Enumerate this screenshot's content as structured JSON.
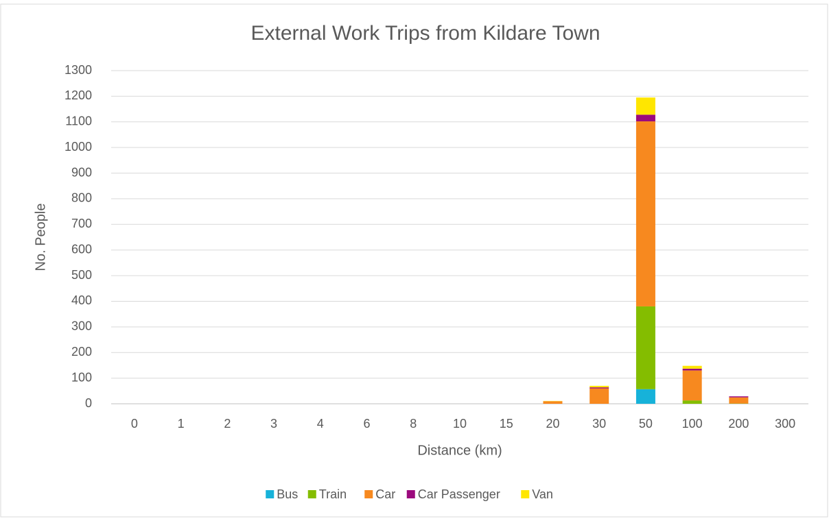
{
  "chart_data": {
    "type": "stacked-bar",
    "title": "External Work Trips from Kildare Town",
    "xlabel": "Distance (km)",
    "ylabel": "No. People",
    "categories": [
      "0",
      "1",
      "2",
      "3",
      "4",
      "6",
      "8",
      "10",
      "15",
      "20",
      "30",
      "50",
      "100",
      "200",
      "300"
    ],
    "series": [
      {
        "name": "Bus",
        "color": "#17b2d9",
        "values": [
          0,
          0,
          0,
          0,
          0,
          0,
          0,
          0,
          0,
          0,
          0,
          57,
          0,
          0,
          0
        ]
      },
      {
        "name": "Train",
        "color": "#84bd00",
        "values": [
          0,
          0,
          0,
          0,
          0,
          0,
          0,
          0,
          0,
          0,
          0,
          323,
          13,
          1,
          0
        ]
      },
      {
        "name": "Car",
        "color": "#f7891f",
        "values": [
          0,
          0,
          0,
          0,
          0,
          0,
          0,
          0,
          0,
          10,
          60,
          722,
          117,
          24,
          0
        ]
      },
      {
        "name": "Car Passenger",
        "color": "#9b0a7d",
        "values": [
          0,
          0,
          0,
          0,
          0,
          0,
          0,
          0,
          0,
          0,
          4,
          26,
          7,
          4,
          0
        ]
      },
      {
        "name": "Van",
        "color": "#ffe600",
        "values": [
          0,
          0,
          0,
          0,
          0,
          0,
          0,
          0,
          0,
          1,
          6,
          67,
          11,
          0,
          0
        ]
      }
    ],
    "ylim": [
      0,
      1300
    ],
    "yticks": [
      0,
      100,
      200,
      300,
      400,
      500,
      600,
      700,
      800,
      900,
      1000,
      1100,
      1200,
      1300
    ],
    "grid": true,
    "legend": "bottom"
  }
}
